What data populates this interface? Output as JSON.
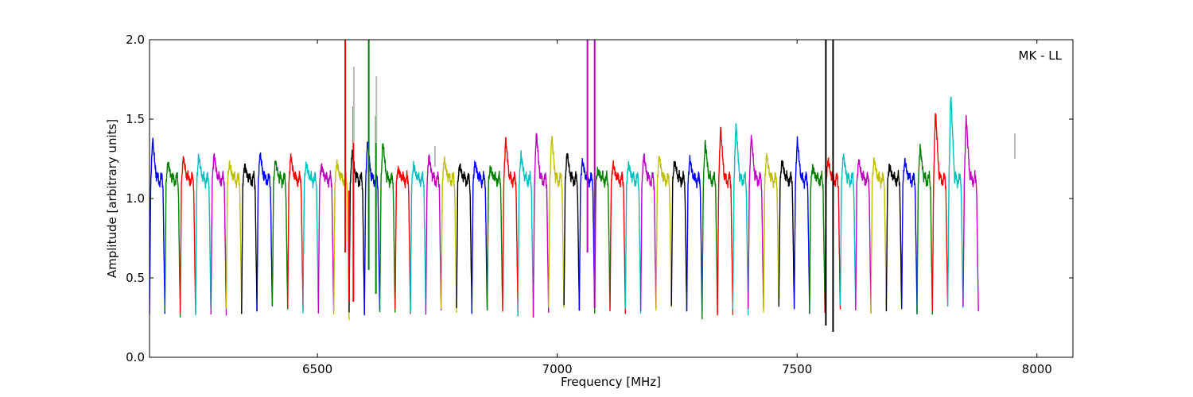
{
  "chart_data": {
    "type": "line",
    "annotation": "MK - LL",
    "xlabel": "Frequency [MHz]",
    "ylabel": "Amplitude [arbitrary units]",
    "xlim": [
      6150,
      8075
    ],
    "ylim": [
      0.0,
      2.0
    ],
    "x_ticks": [
      {
        "value": 6500,
        "label": "6500"
      },
      {
        "value": 7000,
        "label": "7000"
      },
      {
        "value": 7500,
        "label": "7500"
      },
      {
        "value": 8000,
        "label": "8000"
      }
    ],
    "y_ticks": [
      {
        "value": 0.0,
        "label": "0.0"
      },
      {
        "value": 0.5,
        "label": "0.5"
      },
      {
        "value": 1.0,
        "label": "1.0"
      },
      {
        "value": 1.5,
        "label": "1.5"
      },
      {
        "value": 2.0,
        "label": "2.0"
      }
    ],
    "grid": false,
    "legend": "none",
    "colors": [
      "#0000ff",
      "#008000",
      "#ff0000",
      "#00bfbf",
      "#bf00bf",
      "#bfbf00",
      "#000000"
    ],
    "rfi_color": "#bbbbbb",
    "channel_width_mhz": 32,
    "channel_start_mhz": 6150,
    "channel_peaks": [
      1.38,
      1.23,
      1.26,
      1.27,
      1.28,
      1.22,
      1.21,
      1.29,
      1.24,
      1.27,
      1.22,
      1.21,
      1.23,
      1.3,
      1.37,
      1.36,
      1.19,
      1.21,
      1.27,
      1.25,
      1.21,
      1.23,
      1.19,
      1.38,
      1.28,
      1.42,
      1.4,
      1.29,
      1.24,
      1.18,
      1.22,
      1.22,
      1.28,
      1.27,
      1.24,
      1.25,
      1.36,
      1.45,
      1.48,
      1.4,
      1.28,
      1.24,
      1.37,
      1.2,
      1.25,
      1.28,
      1.24,
      1.25,
      1.21,
      1.24,
      1.33,
      1.56,
      1.67,
      1.52
    ],
    "channel_floors": [
      0.27,
      0.26,
      0.27,
      0.28,
      0.27,
      0.3,
      0.29,
      0.3,
      0.3,
      0.3,
      0.3,
      0.29,
      0.26,
      0.28,
      0.27,
      0.27,
      0.29,
      0.3,
      0.29,
      0.29,
      0.29,
      0.28,
      0.3,
      0.28,
      0.27,
      0.27,
      0.3,
      0.3,
      0.3,
      0.3,
      0.29,
      0.3,
      0.3,
      0.29,
      0.3,
      0.29,
      0.27,
      0.27,
      0.28,
      0.3,
      0.29,
      0.31,
      0.3,
      0.3,
      0.29,
      0.3,
      0.28,
      0.29,
      0.3,
      0.3,
      0.28,
      0.3,
      0.3,
      0.3
    ],
    "rfi_spikes": [
      {
        "x": 6558,
        "y_min": 0.66,
        "y_max": 2.0,
        "color": "#ff0000"
      },
      {
        "x": 6566,
        "y_min": 0.35,
        "y_max": 1.05,
        "color": "#ff0000"
      },
      {
        "x": 6575,
        "y_min": 0.35,
        "y_max": 1.58,
        "color": "#ff0000"
      },
      {
        "x": 6576,
        "y_min": 1.35,
        "y_max": 1.83,
        "color": "#bbbbbb"
      },
      {
        "x": 6607,
        "y_min": 0.55,
        "y_max": 2.0,
        "color": "#008000"
      },
      {
        "x": 6622,
        "y_min": 0.4,
        "y_max": 1.52,
        "color": "#008000"
      },
      {
        "x": 6623,
        "y_min": 1.35,
        "y_max": 1.77,
        "color": "#bbbbbb"
      },
      {
        "x": 6745,
        "y_min": 1.2,
        "y_max": 1.33,
        "color": "#bbbbbb"
      },
      {
        "x": 7063,
        "y_min": 0.66,
        "y_max": 2.0,
        "color": "#bf00bf"
      },
      {
        "x": 7078,
        "y_min": 0.31,
        "y_max": 2.0,
        "color": "#bf00bf"
      },
      {
        "x": 7560,
        "y_min": 0.2,
        "y_max": 2.0,
        "color": "#000000"
      },
      {
        "x": 7575,
        "y_min": 0.16,
        "y_max": 2.0,
        "color": "#000000"
      },
      {
        "x": 7954,
        "y_min": 1.25,
        "y_max": 1.41,
        "color": "#bbbbbb"
      }
    ]
  }
}
